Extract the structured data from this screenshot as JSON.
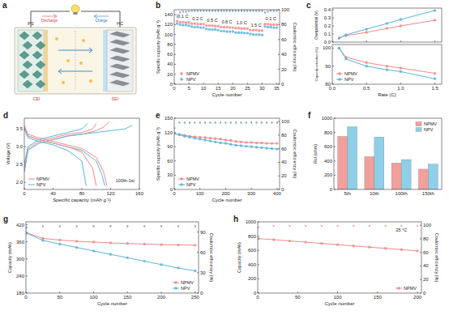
{
  "diagram": {
    "label": "a",
    "electrodes": [
      "PS",
      "HC"
    ],
    "interphases": [
      "CEI",
      "SEI"
    ],
    "processes": [
      "Discharge",
      "Charge"
    ]
  },
  "chart_data": [
    {
      "type": "scatter",
      "label": "b",
      "xlabel": "Cycle number",
      "ylabel": "Specific capacity (mAh g⁻¹)",
      "y2label": "Coulombic efficiency (%)",
      "x": [
        1,
        2,
        3,
        4,
        5,
        6,
        7,
        8,
        9,
        10,
        11,
        12,
        13,
        14,
        15,
        16,
        17,
        18,
        19,
        20,
        21,
        22,
        23,
        24,
        25,
        26,
        27,
        28,
        29,
        30,
        31,
        32,
        33,
        34,
        35
      ],
      "xlim": [
        0,
        36
      ],
      "xticks": [
        0,
        5,
        10,
        15,
        20,
        25,
        30,
        35
      ],
      "ylim": [
        0,
        150
      ],
      "yticks": [
        0,
        20,
        40,
        60,
        80,
        100,
        120,
        140
      ],
      "y2lim": [
        0,
        100
      ],
      "y2ticks": [
        0,
        20,
        40,
        60,
        80,
        100
      ],
      "legend": "bottom-left",
      "grid": false,
      "series": [
        {
          "name": "NPMV",
          "color": "#ef8a8a",
          "marker": "circle",
          "line_style": "none",
          "values": [
            127,
            125,
            125,
            124,
            124,
            122,
            122,
            121,
            121,
            121,
            118,
            118,
            118,
            117,
            117,
            115,
            115,
            115,
            114,
            114,
            113,
            113,
            112,
            112,
            112,
            109,
            109,
            109,
            108,
            108,
            121,
            121,
            120,
            120,
            120
          ]
        },
        {
          "name": "NPV",
          "color": "#5bb5d9",
          "marker": "circle",
          "line_style": "none",
          "values": [
            122,
            120,
            119,
            119,
            118,
            116,
            115,
            115,
            114,
            114,
            111,
            110,
            110,
            110,
            109,
            107,
            107,
            106,
            106,
            106,
            104,
            104,
            104,
            103,
            103,
            101,
            100,
            100,
            100,
            99,
            116,
            115,
            115,
            114,
            114
          ]
        },
        {
          "color": "#ef8a8a",
          "marker": "circle",
          "line_style": "none",
          "axis": "y2",
          "values": [
            93,
            97,
            98,
            98,
            98,
            99,
            99,
            99,
            99,
            99,
            99,
            99,
            99,
            99,
            99,
            99,
            99,
            99,
            99,
            99,
            99,
            99,
            99,
            99,
            99,
            99,
            99,
            99,
            99,
            99,
            97,
            98,
            99,
            99,
            99
          ]
        },
        {
          "color": "#5bb5d9",
          "marker": "circle",
          "line_style": "none",
          "axis": "y2",
          "values": [
            90,
            96,
            97,
            97,
            98,
            98,
            98,
            98,
            98,
            98,
            98,
            98,
            98,
            98,
            98,
            98,
            98,
            98,
            98,
            98,
            98,
            98,
            98,
            98,
            98,
            98,
            98,
            98,
            98,
            98,
            96,
            97,
            98,
            98,
            98
          ]
        }
      ],
      "annotations": [
        {
          "text": "0.1 C",
          "x": 3,
          "y": 133
        },
        {
          "text": "0.2 C",
          "x": 8,
          "y": 129
        },
        {
          "text": "0.5 C",
          "x": 13,
          "y": 125
        },
        {
          "text": "0.8 C",
          "x": 18,
          "y": 122
        },
        {
          "text": "1.0 C",
          "x": 23,
          "y": 120
        },
        {
          "text": "1.5 C",
          "x": 28,
          "y": 116
        },
        {
          "text": "0.1 C",
          "x": 33,
          "y": 128
        }
      ]
    },
    {
      "type": "line",
      "label": "c",
      "ylabel": "Overpotential (V)",
      "tick_labels": "y",
      "x": [
        0.1,
        0.2,
        0.5,
        0.8,
        1.0,
        1.5
      ],
      "xlim": [
        0,
        1.6
      ],
      "xticks": [
        {
          "value": 0,
          "label": "0.0"
        },
        0.5,
        {
          "value": 1,
          "label": "1.0"
        },
        1.5
      ],
      "ylim": [
        0,
        0.42
      ],
      "yticks": [
        {
          "value": 0,
          "label": "0.0"
        },
        0.1,
        0.2,
        0.3,
        0.4
      ],
      "grid": false,
      "series": [
        {
          "color": "#ef8a8a",
          "marker": "circle",
          "line_style": "solid",
          "values": [
            0.05,
            0.08,
            0.12,
            0.17,
            0.2,
            0.27
          ]
        },
        {
          "color": "#5bb5d9",
          "marker": "circle",
          "line_style": "solid",
          "values": [
            0.05,
            0.09,
            0.16,
            0.23,
            0.28,
            0.39
          ]
        }
      ]
    },
    {
      "type": "line",
      "xlabel": "Rate (C)",
      "ylabel": "Capacity retention (%)",
      "x": [
        0.1,
        0.2,
        0.5,
        0.8,
        1.0,
        1.5
      ],
      "xlim": [
        0,
        1.6
      ],
      "xticks": [
        {
          "value": 0,
          "label": "0.0"
        },
        0.5,
        {
          "value": 1,
          "label": "1.0"
        },
        1.5
      ],
      "ylim": [
        80,
        102
      ],
      "yticks": [
        80,
        90,
        100
      ],
      "legend": "bottom-left",
      "grid": false,
      "series": [
        {
          "name": "NPMV",
          "color": "#ef8a8a",
          "marker": "circle",
          "line_style": "solid",
          "values": [
            100,
            95,
            92,
            90,
            89,
            86
          ]
        },
        {
          "name": "NPV",
          "color": "#5bb5d9",
          "marker": "circle",
          "line_style": "solid",
          "values": [
            100,
            94,
            90,
            88,
            87,
            83
          ]
        }
      ]
    },
    {
      "type": "line",
      "label": "d",
      "xlabel": "Specific capacity (mAh g⁻¹)",
      "ylabel": "Voltage (V)",
      "xlim": [
        0,
        160
      ],
      "xticks": [
        0,
        40,
        80,
        120,
        160
      ],
      "ylim": [
        1.8,
        3.8
      ],
      "yticks": [
        {
          "value": 2,
          "label": "2.0"
        },
        2.5,
        {
          "value": 3,
          "label": "3.0"
        },
        3.5
      ],
      "legend": "bottom-left",
      "grid": false,
      "series": [
        {
          "name": "NPMV",
          "color": "#ef8a8a",
          "marker": "none",
          "line_style": "solid",
          "x": [
            0,
            5,
            20,
            40,
            60,
            80,
            100,
            110,
            118
          ],
          "values": [
            2.3,
            2.9,
            3.1,
            3.2,
            3.3,
            3.35,
            3.45,
            3.55,
            3.7
          ]
        },
        {
          "name": "NPV",
          "color": "#5bb5d9",
          "marker": "none",
          "line_style": "solid",
          "x": [
            0,
            5,
            20,
            40,
            60,
            80,
            100,
            120,
            140,
            150
          ],
          "values": [
            2.3,
            2.9,
            3.1,
            3.2,
            3.3,
            3.35,
            3.4,
            3.45,
            3.5,
            3.6
          ]
        },
        {
          "color": "#ef8a8a",
          "marker": "none",
          "line_style": "solid",
          "x": [
            0,
            5,
            20,
            40,
            60,
            80,
            100,
            110,
            115
          ],
          "values": [
            3.6,
            3.35,
            3.25,
            3.15,
            3.05,
            2.95,
            2.7,
            2.3,
            1.9
          ]
        },
        {
          "color": "#5bb5d9",
          "marker": "none",
          "line_style": "solid",
          "x": [
            0,
            5,
            20,
            40,
            60,
            80,
            100,
            108,
            112
          ],
          "values": [
            3.55,
            3.3,
            3.2,
            3.1,
            3.0,
            2.9,
            2.6,
            2.2,
            1.9
          ]
        },
        {
          "color": "#ef8a8a",
          "marker": "none",
          "line_style": "solid",
          "x": [
            0,
            5,
            20,
            40,
            60,
            80,
            95,
            100
          ],
          "values": [
            2.4,
            2.95,
            3.15,
            3.25,
            3.35,
            3.4,
            3.5,
            3.65
          ]
        },
        {
          "color": "#5bb5d9",
          "marker": "none",
          "line_style": "solid",
          "x": [
            0,
            5,
            20,
            40,
            60,
            80,
            88
          ],
          "values": [
            2.5,
            3.0,
            3.2,
            3.3,
            3.4,
            3.5,
            3.65
          ]
        },
        {
          "color": "#ef8a8a",
          "marker": "none",
          "line_style": "solid",
          "x": [
            0,
            5,
            20,
            40,
            60,
            80,
            95,
            100
          ],
          "values": [
            3.55,
            3.3,
            3.2,
            3.1,
            3.0,
            2.85,
            2.4,
            1.9
          ]
        },
        {
          "color": "#5bb5d9",
          "marker": "none",
          "line_style": "solid",
          "x": [
            0,
            5,
            20,
            40,
            60,
            80,
            86
          ],
          "values": [
            3.5,
            3.25,
            3.15,
            3.05,
            2.9,
            2.6,
            1.9
          ]
        }
      ],
      "annotations": [
        {
          "text": "100th-1st",
          "x": 140,
          "y": 2.0
        }
      ]
    },
    {
      "type": "line",
      "label": "e",
      "xlabel": "Cycle number",
      "ylabel": "Specific capacity (mAh g⁻¹)",
      "y2label": "Coulombic efficiency (%)",
      "x": [
        1,
        20,
        40,
        60,
        80,
        100,
        120,
        140,
        160,
        180,
        200,
        220,
        240,
        260,
        280,
        300,
        320,
        340,
        360,
        380,
        400
      ],
      "xlim": [
        0,
        410
      ],
      "xticks": [
        0,
        100,
        200,
        300,
        400
      ],
      "ylim": [
        0,
        150
      ],
      "yticks": [
        0,
        30,
        60,
        90,
        120,
        150
      ],
      "y2lim": [
        0,
        105
      ],
      "y2ticks": [
        0,
        20,
        40,
        60,
        80,
        100
      ],
      "legend": "bottom-left",
      "grid": false,
      "series": [
        {
          "name": "NPMV",
          "color": "#ef8a8a",
          "marker": "circle",
          "line_style": "solid",
          "values": [
            118,
            116,
            114,
            112,
            111,
            110,
            109,
            108,
            107,
            106,
            104,
            103,
            101,
            100,
            99,
            99,
            98,
            98,
            97,
            97,
            97
          ]
        },
        {
          "name": "NPV",
          "color": "#5bb5d9",
          "marker": "circle",
          "line_style": "solid",
          "values": [
            118,
            115,
            112,
            110,
            108,
            106,
            104,
            102,
            100,
            98,
            97,
            95,
            93,
            92,
            91,
            90,
            89,
            88,
            87,
            86,
            85
          ]
        },
        {
          "color": "#ef8a8a",
          "marker": "circle",
          "line_style": "none",
          "axis": "y2",
          "values": [
            91,
            99,
            99,
            99,
            99,
            99,
            99,
            99,
            99,
            99,
            99,
            99,
            99,
            99,
            99,
            99,
            99,
            99,
            99,
            99,
            99
          ]
        },
        {
          "color": "#5bb5d9",
          "marker": "circle",
          "line_style": "none",
          "axis": "y2",
          "values": [
            90,
            98,
            98,
            98,
            98,
            98,
            98,
            98,
            98,
            98,
            98,
            98,
            98,
            98,
            98,
            98,
            98,
            98,
            98,
            98,
            98
          ]
        }
      ]
    },
    {
      "type": "bar",
      "label": "f",
      "ylabel": "Rct (ohm)",
      "categories": [
        "5th",
        "10th",
        "100th",
        "150th"
      ],
      "ylim": [
        0,
        1000
      ],
      "yticks": [
        0,
        200,
        400,
        600,
        800,
        1000
      ],
      "legend": "top-right",
      "grid": false,
      "series": [
        {
          "name": "NPMV",
          "color": "#f2a09b",
          "values": [
            745,
            460,
            370,
            285
          ]
        },
        {
          "name": "NPV",
          "color": "#8fcfe8",
          "values": [
            880,
            735,
            420,
            355
          ]
        }
      ]
    },
    {
      "type": "line",
      "label": "g",
      "xlabel": "Cycle number",
      "ylabel": "Capacity (mAh)",
      "y2label": "Coulombic efficiency (%)",
      "x": [
        1,
        25,
        50,
        75,
        100,
        125,
        150,
        175,
        200,
        225,
        250
      ],
      "xlim": [
        0,
        255
      ],
      "xticks": [
        0,
        50,
        100,
        150,
        200,
        250
      ],
      "ylim": [
        180,
        430
      ],
      "yticks": [
        180,
        240,
        300,
        360,
        420
      ],
      "y2lim": [
        0,
        105
      ],
      "y2ticks": [
        0,
        30,
        60,
        90
      ],
      "legend": "bottom-right",
      "grid": false,
      "series": [
        {
          "name": "NPMV",
          "color": "#ef8a8a",
          "marker": "circle",
          "line_style": "solid",
          "values": [
            392,
            372,
            366,
            362,
            359,
            356,
            354,
            352,
            350,
            349,
            348
          ]
        },
        {
          "name": "NPV",
          "color": "#5bb5d9",
          "marker": "circle",
          "line_style": "solid",
          "values": [
            390,
            365,
            352,
            340,
            328,
            316,
            304,
            292,
            280,
            268,
            258
          ]
        },
        {
          "color": "#ef8a8a",
          "marker": "circle",
          "line_style": "none",
          "axis": "y2",
          "values": [
            97,
            99,
            99,
            99,
            99,
            99,
            99,
            99,
            99,
            99,
            99
          ]
        },
        {
          "color": "#5bb5d9",
          "marker": "circle",
          "line_style": "none",
          "axis": "y2",
          "values": [
            96,
            98,
            98,
            98,
            98,
            98,
            98,
            98,
            98,
            98,
            98
          ]
        }
      ]
    },
    {
      "type": "line",
      "label": "h",
      "xlabel": "Cycle number",
      "ylabel": "Capacity (mAh)",
      "y2label": "Coulombic efficiency (%)",
      "x": [
        1,
        20,
        40,
        60,
        80,
        100,
        120,
        140,
        160,
        180,
        200
      ],
      "xlim": [
        0,
        205
      ],
      "xticks": [
        0,
        50,
        100,
        150,
        200
      ],
      "ylim": [
        0,
        1000
      ],
      "yticks": [
        0,
        200,
        400,
        600,
        800,
        1000
      ],
      "y2lim": [
        0,
        105
      ],
      "y2ticks": [
        0,
        20,
        40,
        60,
        80,
        100
      ],
      "legend": "bottom-right",
      "grid": false,
      "series": [
        {
          "name": "NPMV",
          "color": "#ef8a8a",
          "marker": "circle",
          "line_style": "solid",
          "values": [
            765,
            750,
            732,
            715,
            697,
            680,
            662,
            645,
            627,
            610,
            592
          ]
        },
        {
          "color": "#ef8a8a",
          "marker": "circle",
          "line_style": "none",
          "axis": "y2",
          "values": [
            97,
            99,
            99,
            99,
            99,
            99,
            99,
            99,
            99,
            99,
            99
          ]
        }
      ],
      "annotations": [
        {
          "text": "25 °C",
          "x": 180,
          "y": 860
        }
      ]
    }
  ]
}
